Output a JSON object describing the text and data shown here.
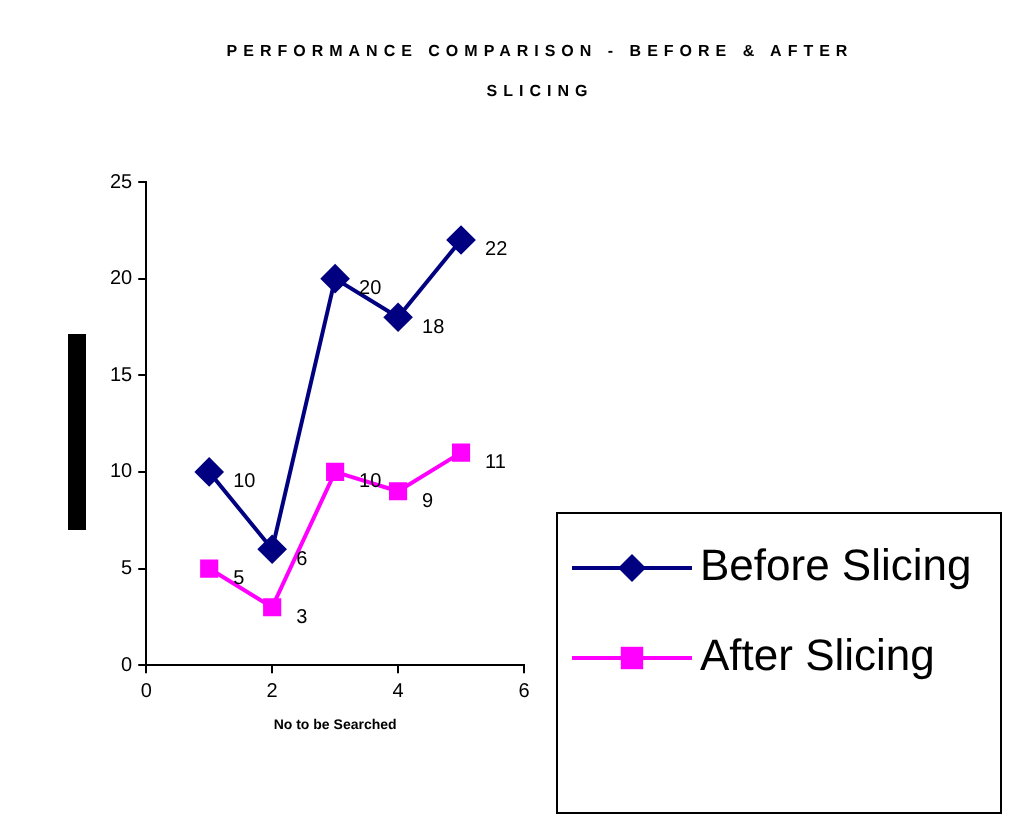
{
  "chart_data": {
    "type": "line",
    "title": "PERFORMANCE COMPARISON - BEFORE & AFTER SLICING",
    "xlabel": "No to be Searched",
    "x": [
      1,
      2,
      3,
      4,
      5
    ],
    "series": [
      {
        "name": "Before Slicing",
        "color": "#000080",
        "values": [
          10,
          6,
          20,
          18,
          22
        ],
        "marker": "diamond"
      },
      {
        "name": "After Slicing",
        "color": "#ff00ff",
        "values": [
          5,
          3,
          10,
          9,
          11
        ],
        "marker": "square"
      }
    ],
    "xlim": [
      0,
      6
    ],
    "xticks": [
      0,
      2,
      4,
      6
    ],
    "ylim": [
      0,
      25
    ],
    "yticks": [
      0,
      5,
      10,
      15,
      20,
      25
    ],
    "grid": false,
    "legend": "bottom right",
    "data_labels": true,
    "line_style": "solid"
  }
}
